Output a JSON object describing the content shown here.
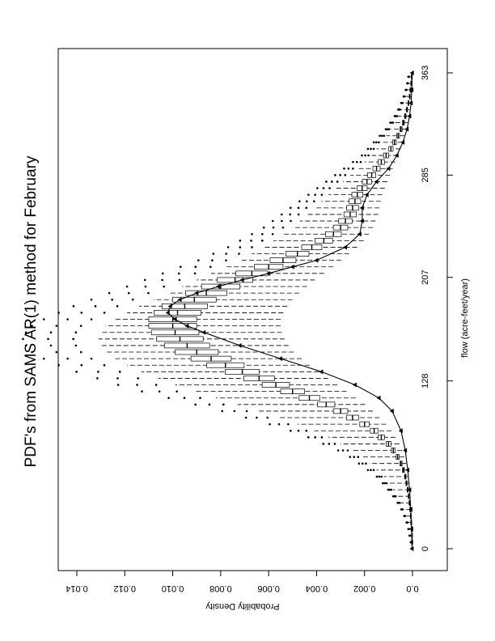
{
  "chart_data": {
    "type": "line",
    "title": "PDF's from SAMS AR(1) method for February",
    "xlabel": "flow (acre-feet/year)",
    "ylabel": "Probability Density",
    "x_ticks": [
      0,
      128,
      207,
      285,
      363
    ],
    "y_ticks": [
      "0.0",
      "0.002",
      "0.004",
      "0.006",
      "0.008",
      "0.010",
      "0.012",
      "0.014"
    ],
    "xlim": [
      -10,
      370
    ],
    "ylim": [
      -0.0002,
      0.0148
    ],
    "rotated": true,
    "historical_pdf": {
      "x": [
        0,
        15,
        30,
        45,
        60,
        75,
        90,
        105,
        115,
        125,
        135,
        145,
        155,
        165,
        170,
        175,
        180,
        185,
        190,
        195,
        200,
        205,
        210,
        215,
        220,
        230,
        240,
        250,
        260,
        270,
        280,
        290,
        300,
        310,
        320,
        330,
        340,
        350,
        363
      ],
      "y": [
        2e-05,
        4e-05,
        7e-05,
        0.00012,
        0.0002,
        0.0003,
        0.00048,
        0.00085,
        0.0014,
        0.0024,
        0.0038,
        0.0055,
        0.0072,
        0.0087,
        0.0094,
        0.0099,
        0.0102,
        0.0101,
        0.0097,
        0.009,
        0.0081,
        0.0071,
        0.006,
        0.005,
        0.004,
        0.0028,
        0.0022,
        0.0021,
        0.0021,
        0.0019,
        0.0015,
        0.001,
        0.00065,
        0.0004,
        0.00023,
        0.00012,
        6e-05,
        3e-05,
        1e-05
      ]
    },
    "boxplots": {
      "x": [
        5,
        10,
        15,
        20,
        25,
        30,
        35,
        40,
        45,
        50,
        55,
        60,
        65,
        70,
        75,
        80,
        85,
        90,
        95,
        100,
        105,
        110,
        115,
        120,
        125,
        130,
        135,
        140,
        145,
        150,
        155,
        160,
        165,
        170,
        175,
        180,
        185,
        190,
        195,
        200,
        205,
        210,
        215,
        220,
        225,
        230,
        235,
        240,
        245,
        250,
        255,
        260,
        265,
        270,
        275,
        280,
        285,
        290,
        295,
        300,
        305,
        310,
        315,
        320,
        325,
        330,
        335,
        340,
        345,
        350,
        355,
        360
      ],
      "median": [
        2e-05,
        3e-05,
        4e-05,
        6e-05,
        8e-05,
        0.0001,
        0.00013,
        0.00016,
        0.0002,
        0.00025,
        0.0003,
        0.00038,
        0.00048,
        0.00062,
        0.0008,
        0.001,
        0.0013,
        0.0016,
        0.002,
        0.0025,
        0.003,
        0.0036,
        0.0043,
        0.005,
        0.0057,
        0.0064,
        0.0071,
        0.0078,
        0.0084,
        0.009,
        0.0094,
        0.0097,
        0.0099,
        0.01,
        0.01,
        0.0098,
        0.0095,
        0.0091,
        0.0086,
        0.008,
        0.0074,
        0.0067,
        0.006,
        0.0054,
        0.0048,
        0.0042,
        0.0037,
        0.0033,
        0.003,
        0.0028,
        0.0026,
        0.0025,
        0.0024,
        0.0023,
        0.0021,
        0.0019,
        0.0017,
        0.0015,
        0.0013,
        0.0011,
        0.0009,
        0.00075,
        0.0006,
        0.00048,
        0.00038,
        0.0003,
        0.00023,
        0.00017,
        0.00012,
        9e-05,
        6e-05,
        4e-05
      ],
      "max": [
        6e-05,
        0.0001,
        0.00014,
        0.0002,
        0.00028,
        0.00038,
        0.0005,
        0.00065,
        0.00082,
        0.001,
        0.0012,
        0.0015,
        0.0018,
        0.0021,
        0.0025,
        0.003,
        0.0035,
        0.0041,
        0.0048,
        0.0056,
        0.0064,
        0.0073,
        0.0082,
        0.0091,
        0.0099,
        0.0106,
        0.0113,
        0.0119,
        0.0124,
        0.0128,
        0.013,
        0.0131,
        0.013,
        0.0128,
        0.0124,
        0.0119,
        0.0114,
        0.0108,
        0.0102,
        0.0096,
        0.009,
        0.0084,
        0.0078,
        0.0072,
        0.0067,
        0.0062,
        0.0058,
        0.0054,
        0.005,
        0.0047,
        0.0044,
        0.0041,
        0.0038,
        0.0035,
        0.0032,
        0.0029,
        0.0026,
        0.0023,
        0.002,
        0.0017,
        0.0015,
        0.0013,
        0.0011,
        0.0009,
        0.00075,
        0.0006,
        0.00048,
        0.00038,
        0.0003,
        0.00023,
        0.00018,
        0.00014
      ]
    },
    "legend": "none"
  }
}
